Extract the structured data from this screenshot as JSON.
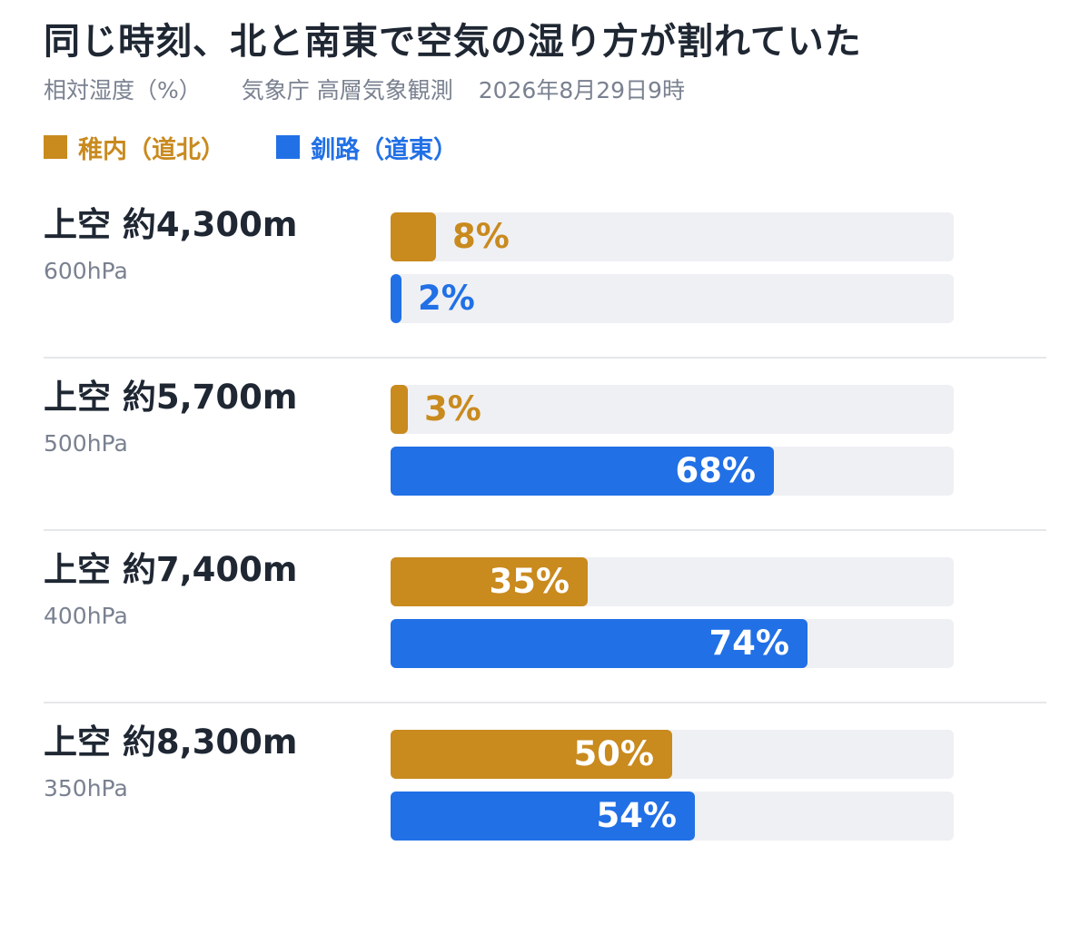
{
  "title": "同じ時刻、北と南東で空気の湿り方が割れていた",
  "subtitle": {
    "unit": "相対湿度（%）",
    "source": "気象庁 高層気象観測",
    "datetime": "2026年8月29日9時"
  },
  "colors": {
    "wakkanai": "#c98a1e",
    "kushiro": "#2170e6",
    "track": "#eff0f4",
    "divider": "#e6e7eb"
  },
  "chart_data": {
    "type": "bar",
    "orientation": "horizontal",
    "title": "同じ時刻、北と南東で空気の湿り方が割れていた",
    "subtitle": "相対湿度（%）",
    "categories": [
      "上空 約4,300m",
      "上空 約5,700m",
      "上空 約7,400m",
      "上空 約8,300m"
    ],
    "category_sublabels": [
      "600hPa",
      "500hPa",
      "400hPa",
      "350hPa"
    ],
    "series": [
      {
        "name": "稚内（道北）",
        "values": [
          8,
          3,
          35,
          50
        ]
      },
      {
        "name": "釧路（道東）",
        "values": [
          2,
          68,
          74,
          54
        ]
      }
    ],
    "value_suffix": "%",
    "xlim": [
      0,
      100
    ],
    "legend": "top-left",
    "grid": false
  }
}
